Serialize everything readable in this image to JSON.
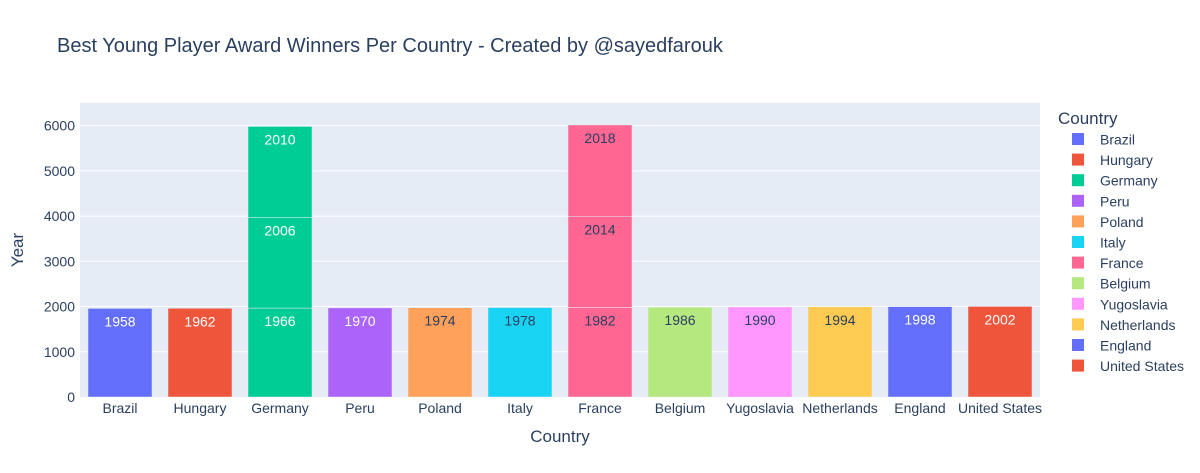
{
  "chart_data": {
    "type": "bar",
    "barmode": "stacked",
    "title": "Best Young Player Award Winners Per Country - Created by @sayedfarouk",
    "xlabel": "Country",
    "ylabel": "Year",
    "ylim": [
      0,
      6500
    ],
    "yticks": [
      0,
      1000,
      2000,
      3000,
      4000,
      5000,
      6000
    ],
    "grid": true,
    "legend_title": "Country",
    "legend_position": "right",
    "categories": [
      "Brazil",
      "Hungary",
      "Germany",
      "Peru",
      "Poland",
      "Italy",
      "France",
      "Belgium",
      "Yugoslavia",
      "Netherlands",
      "England",
      "United States"
    ],
    "series": [
      {
        "name": "Brazil",
        "color": "#636efa",
        "segments": [
          {
            "category": "Brazil",
            "value": 1958,
            "label": "1958"
          }
        ]
      },
      {
        "name": "Hungary",
        "color": "#EF553B",
        "segments": [
          {
            "category": "Hungary",
            "value": 1962,
            "label": "1962"
          }
        ]
      },
      {
        "name": "Germany",
        "color": "#00cc96",
        "segments": [
          {
            "category": "Germany",
            "value": 1966,
            "label": "1966"
          },
          {
            "category": "Germany",
            "value": 2006,
            "label": "2006"
          },
          {
            "category": "Germany",
            "value": 2010,
            "label": "2010"
          }
        ]
      },
      {
        "name": "Peru",
        "color": "#ab63fa",
        "segments": [
          {
            "category": "Peru",
            "value": 1970,
            "label": "1970"
          }
        ]
      },
      {
        "name": "Poland",
        "color": "#FFA15A",
        "segments": [
          {
            "category": "Poland",
            "value": 1974,
            "label": "1974"
          }
        ]
      },
      {
        "name": "Italy",
        "color": "#19d3f3",
        "segments": [
          {
            "category": "Italy",
            "value": 1978,
            "label": "1978"
          }
        ]
      },
      {
        "name": "France",
        "color": "#FF6692",
        "segments": [
          {
            "category": "France",
            "value": 1982,
            "label": "1982"
          },
          {
            "category": "France",
            "value": 2014,
            "label": "2014"
          },
          {
            "category": "France",
            "value": 2018,
            "label": "2018"
          }
        ]
      },
      {
        "name": "Belgium",
        "color": "#B6E880",
        "segments": [
          {
            "category": "Belgium",
            "value": 1986,
            "label": "1986"
          }
        ]
      },
      {
        "name": "Yugoslavia",
        "color": "#FF97FF",
        "segments": [
          {
            "category": "Yugoslavia",
            "value": 1990,
            "label": "1990"
          }
        ]
      },
      {
        "name": "Netherlands",
        "color": "#FECB52",
        "segments": [
          {
            "category": "Netherlands",
            "value": 1994,
            "label": "1994"
          }
        ]
      },
      {
        "name": "England",
        "color": "#636efa",
        "segments": [
          {
            "category": "England",
            "value": 1998,
            "label": "1998"
          }
        ]
      },
      {
        "name": "United States",
        "color": "#EF553B",
        "segments": [
          {
            "category": "United States",
            "value": 2002,
            "label": "2002"
          }
        ]
      }
    ]
  }
}
